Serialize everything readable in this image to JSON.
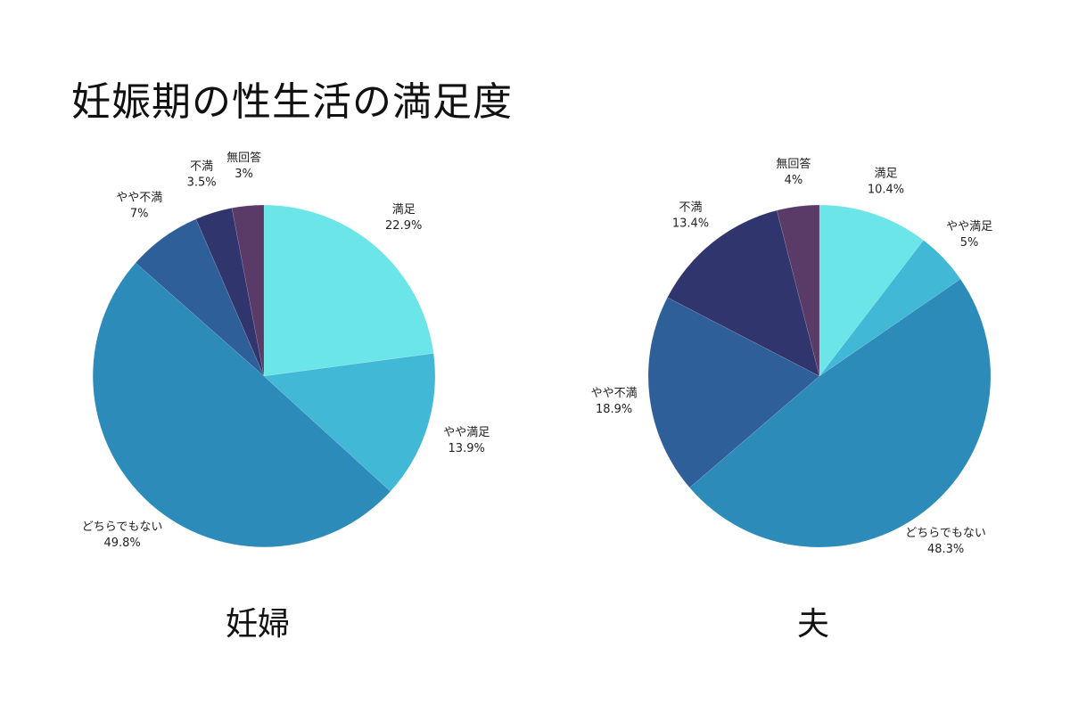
{
  "title": "妊娠期の性生活の満足度",
  "colors": {
    "満足": "#6ce5e8",
    "やや満足": "#41b8d5",
    "どちらでもない": "#2d8bba",
    "やや不満": "#2f5f98",
    "不満": "#31356e",
    "無回答": "#5a3a66"
  },
  "chart_data": [
    {
      "type": "pie",
      "name": "妊婦",
      "slices": [
        {
          "label": "満足",
          "value": 22.9,
          "display": "22.9%"
        },
        {
          "label": "やや満足",
          "value": 13.9,
          "display": "13.9%"
        },
        {
          "label": "どちらでもない",
          "value": 49.8,
          "display": "49.8%"
        },
        {
          "label": "やや不満",
          "value": 7,
          "display": "7%"
        },
        {
          "label": "不満",
          "value": 3.5,
          "display": "3.5%"
        },
        {
          "label": "無回答",
          "value": 3,
          "display": "3%"
        }
      ]
    },
    {
      "type": "pie",
      "name": "夫",
      "slices": [
        {
          "label": "満足",
          "value": 10.4,
          "display": "10.4%"
        },
        {
          "label": "やや満足",
          "value": 5,
          "display": "5%"
        },
        {
          "label": "どちらでもない",
          "value": 48.3,
          "display": "48.3%"
        },
        {
          "label": "やや不満",
          "value": 18.9,
          "display": "18.9%"
        },
        {
          "label": "不満",
          "value": 13.4,
          "display": "13.4%"
        },
        {
          "label": "無回答",
          "value": 4,
          "display": "4%"
        }
      ]
    }
  ]
}
